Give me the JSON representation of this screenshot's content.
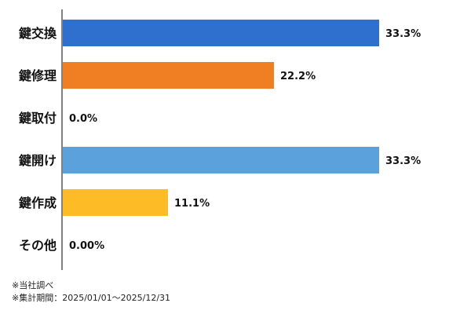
{
  "chart_data": {
    "type": "bar",
    "orientation": "horizontal",
    "categories": [
      "鍵交換",
      "鍵修理",
      "鍵取付",
      "鍵開け",
      "鍵作成",
      "その他"
    ],
    "values": [
      33.3,
      22.2,
      0.0,
      33.3,
      11.1,
      0.0
    ],
    "value_labels": [
      "33.3%",
      "22.2%",
      "0.0%",
      "33.3%",
      "11.1%",
      "0.00%"
    ],
    "colors": [
      "#2f6fce",
      "#f07e22",
      "#a5a5a5",
      "#5ba2dd",
      "#fdbb26",
      "#2f6fce"
    ],
    "xlim": [
      0,
      33.3
    ],
    "grid": false,
    "legend": "none"
  },
  "footnotes": {
    "source": "※当社調べ",
    "period": "※集計期間：2025/01/01〜2025/12/31"
  }
}
